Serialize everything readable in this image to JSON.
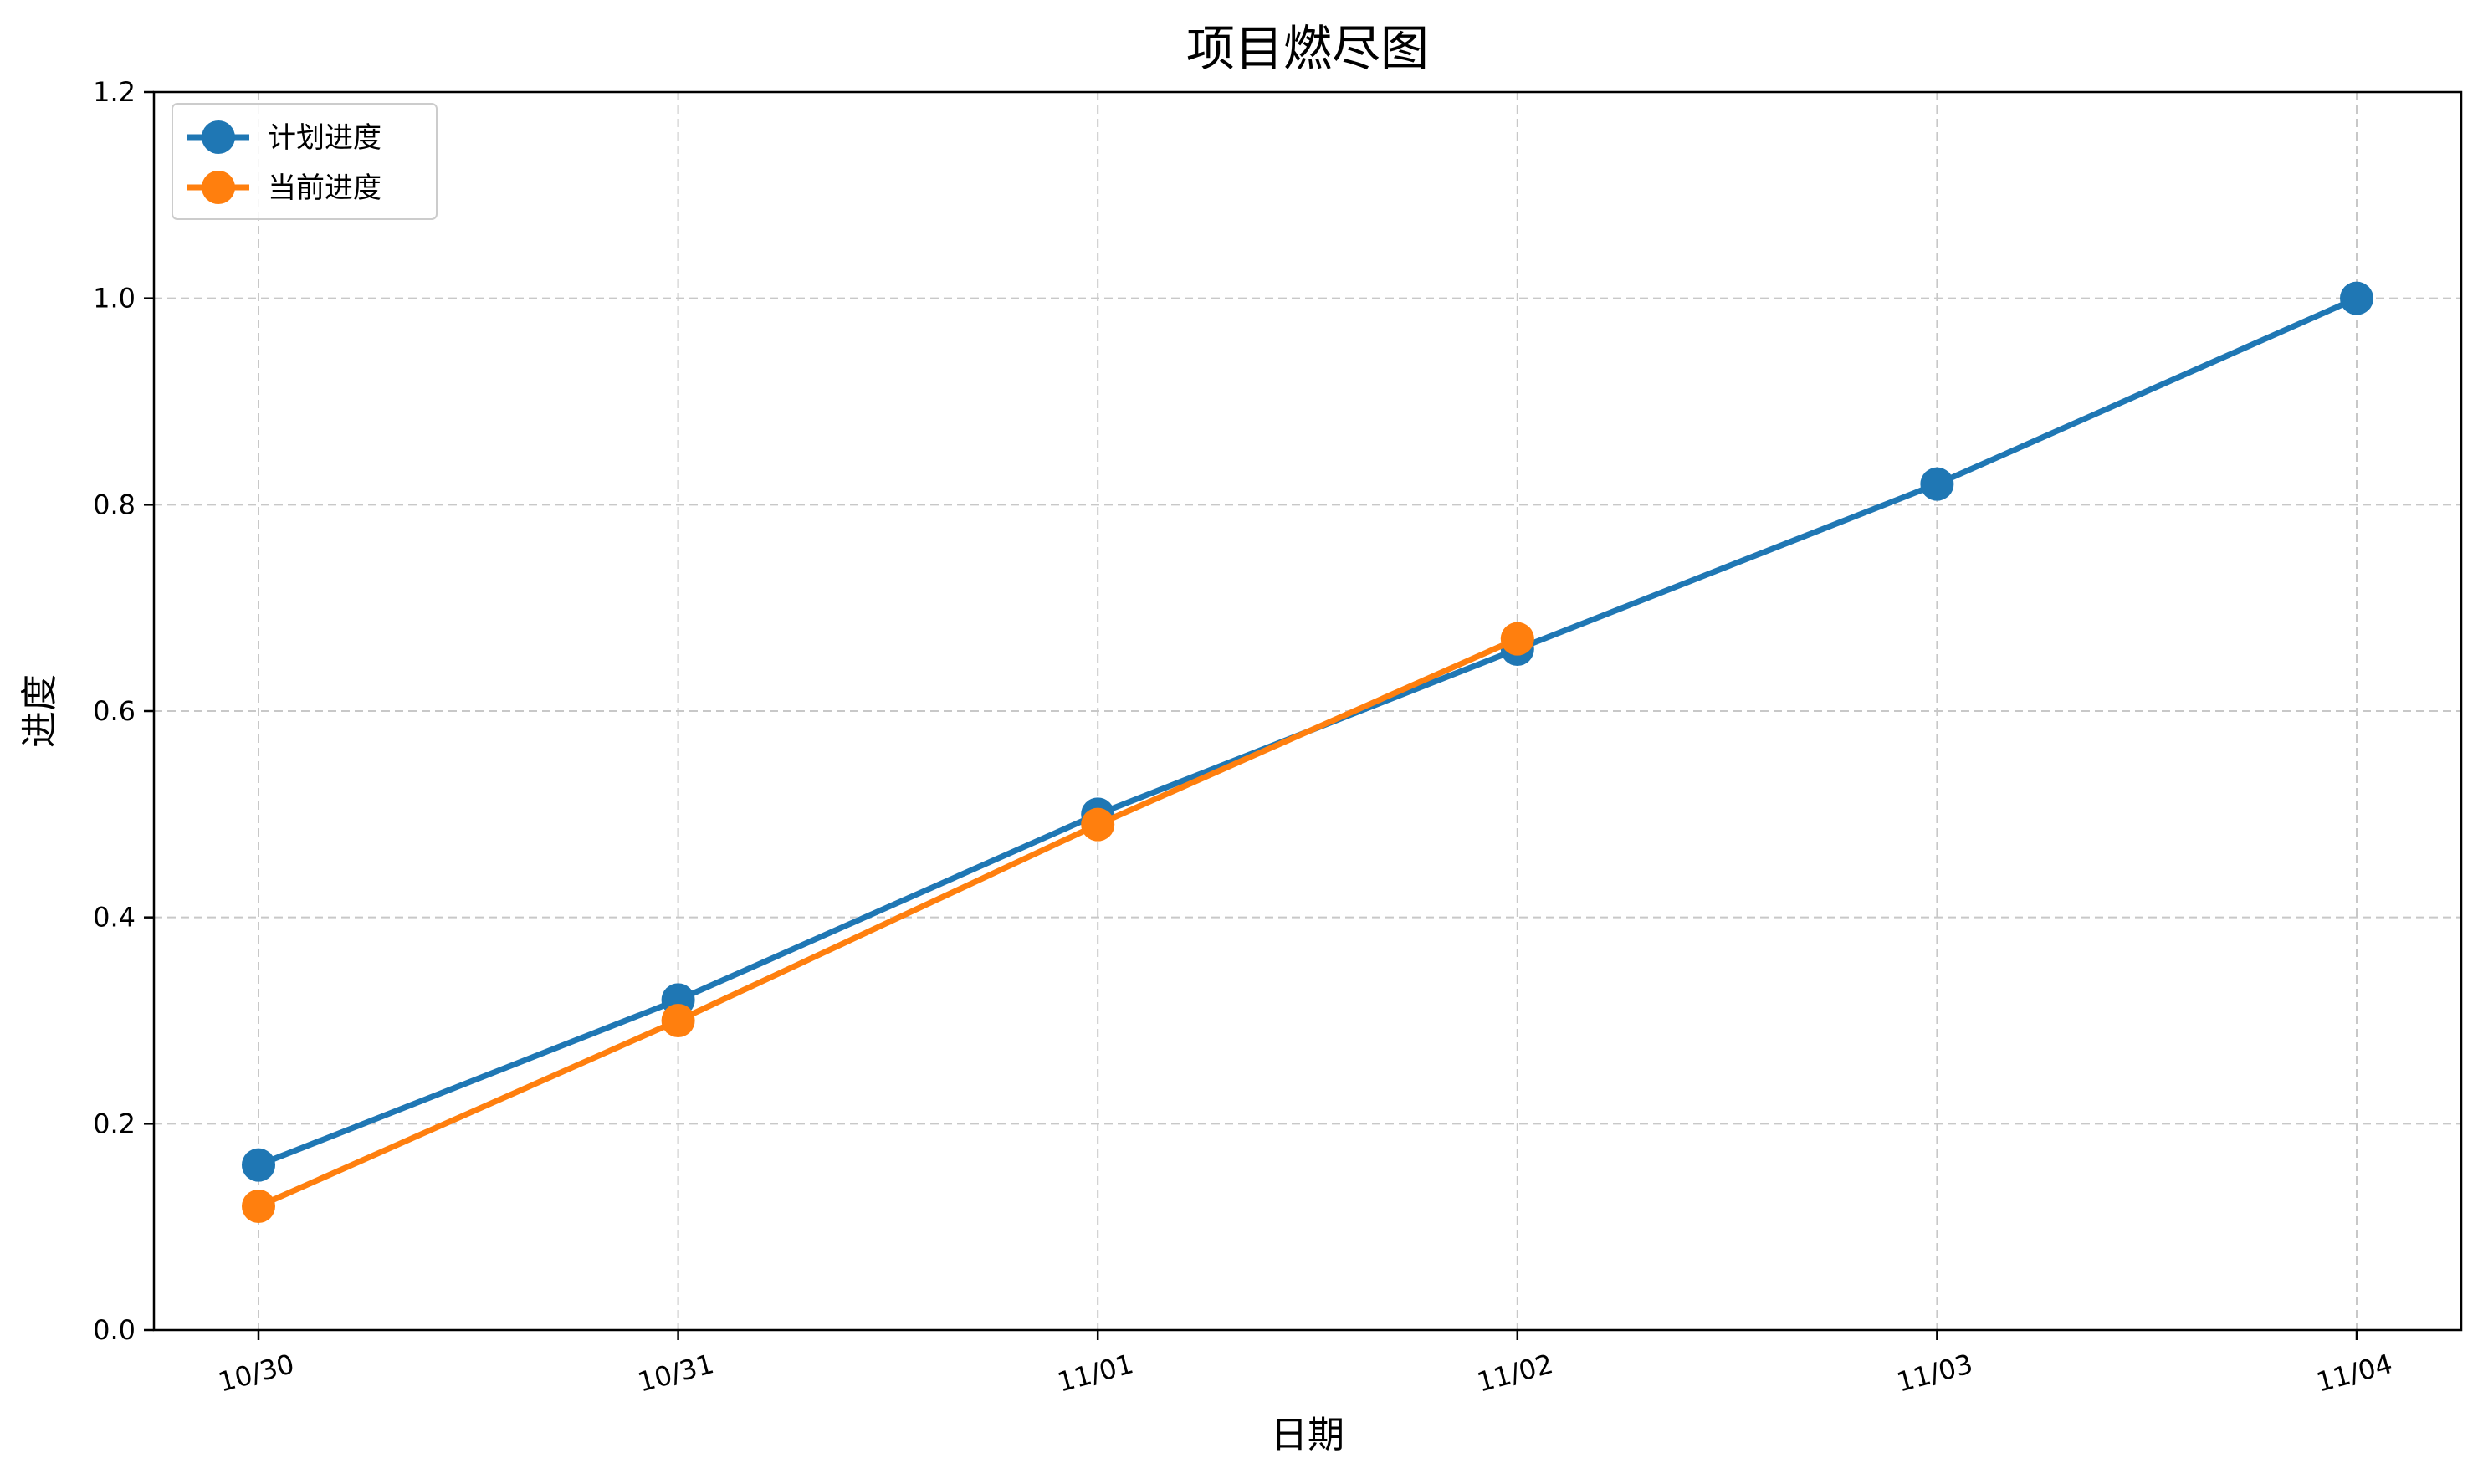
{
  "chart_data": {
    "type": "line",
    "title": "项目燃尽图",
    "xlabel": "日期",
    "ylabel": "进度",
    "categories": [
      "10/30",
      "10/31",
      "11/01",
      "11/02",
      "11/03",
      "11/04"
    ],
    "ylim": [
      0,
      1.2
    ],
    "yticks": [
      0.0,
      0.2,
      0.4,
      0.6,
      0.8,
      1.0,
      1.2
    ],
    "ytick_labels": [
      "0.0",
      "0.2",
      "0.4",
      "0.6",
      "0.8",
      "1.0",
      "1.2"
    ],
    "grid": true,
    "legend_position": "top-left",
    "series": [
      {
        "name": "计划进度",
        "color": "#1f77b4",
        "values": [
          0.16,
          0.32,
          0.5,
          0.66,
          0.82,
          1.0
        ]
      },
      {
        "name": "当前进度",
        "color": "#ff7f0e",
        "values": [
          0.12,
          0.3,
          0.49,
          0.67,
          null,
          null
        ]
      }
    ]
  }
}
